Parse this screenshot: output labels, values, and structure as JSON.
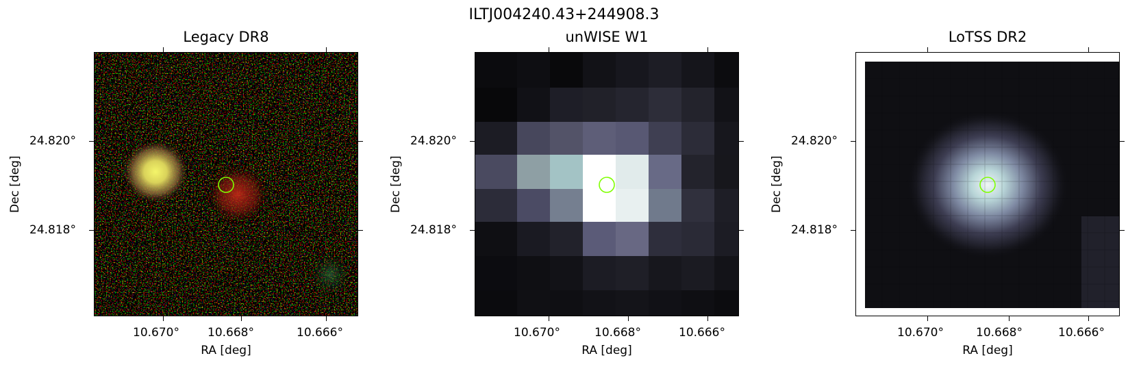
{
  "figure": {
    "suptitle": "ILTJ004240.43+244908.3"
  },
  "panels": [
    {
      "title": "Legacy DR8",
      "xlabel": "RA [deg]",
      "ylabel": "Dec [deg]",
      "xticks": [
        "10.670°",
        "10.668°",
        "10.666°"
      ],
      "yticks": [
        "24.820°",
        "24.818°"
      ]
    },
    {
      "title": "unWISE W1",
      "xlabel": "RA [deg]",
      "ylabel": "Dec [deg]",
      "xticks": [
        "10.670°",
        "10.668°",
        "10.666°"
      ],
      "yticks": [
        "24.820°",
        "24.818°"
      ]
    },
    {
      "title": "LoTSS DR2",
      "xlabel": "RA [deg]",
      "ylabel": "Dec [deg]",
      "xticks": [
        "10.670°",
        "10.668°",
        "10.666°"
      ],
      "yticks": [
        "24.820°",
        "24.818°"
      ]
    }
  ],
  "colors": {
    "marker": "#7fff00"
  }
}
